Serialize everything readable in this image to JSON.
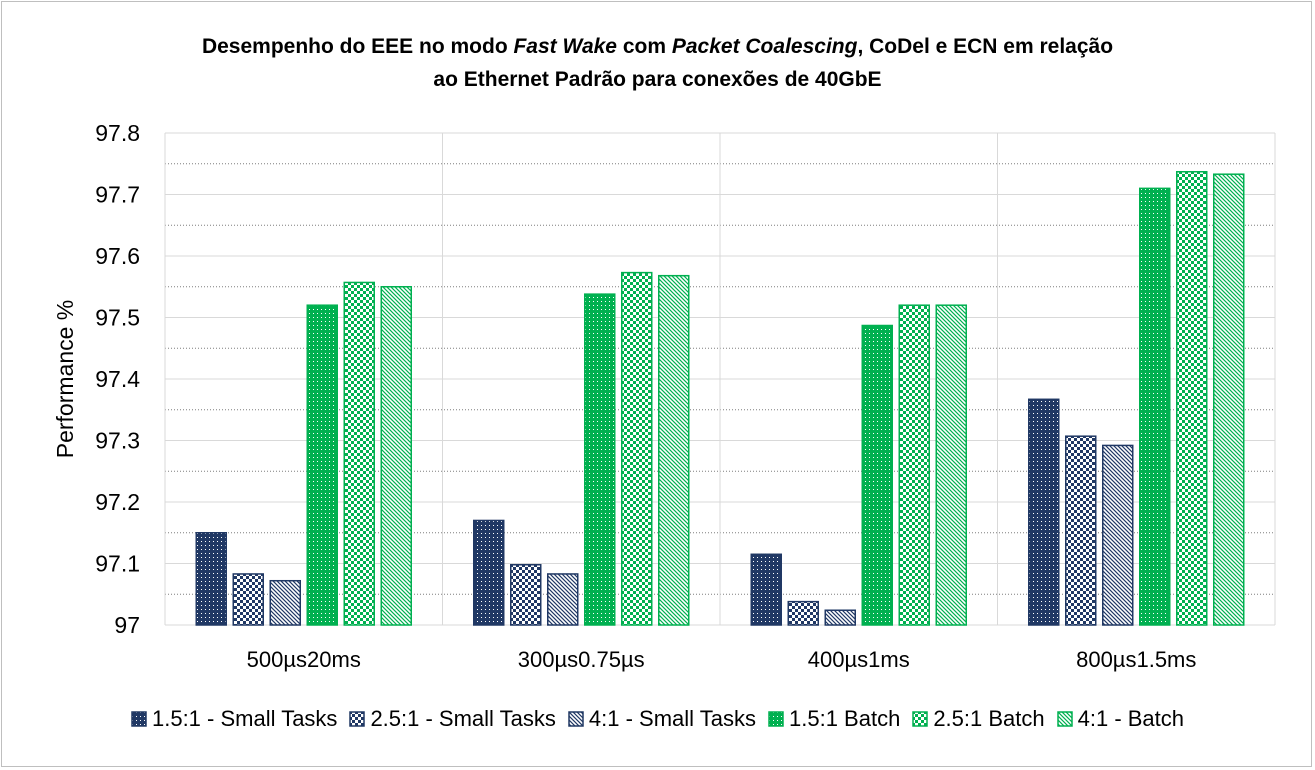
{
  "chart_data": {
    "type": "bar",
    "title_parts": [
      {
        "text": "Desempenho do EEE no modo ",
        "italic": false
      },
      {
        "text": "Fast Wake",
        "italic": true
      },
      {
        "text": " com ",
        "italic": false
      },
      {
        "text": "Packet Coalescing",
        "italic": true
      },
      {
        "text": ", CoDel e ECN em relação",
        "italic": false
      },
      {
        "text": "\n",
        "italic": false
      },
      {
        "text": "ao Ethernet Padrão para conexões de 40GbE",
        "italic": false
      }
    ],
    "ylabel": "Performance %",
    "xlabel": "",
    "ylim": [
      97,
      97.8
    ],
    "yticks": [
      "97",
      "97.1",
      "97.2",
      "97.3",
      "97.4",
      "97.5",
      "97.6",
      "97.7",
      "97.8"
    ],
    "grid": true,
    "legend_position": "bottom",
    "categories": [
      "500µs20ms",
      "300µs0.75µs",
      "400µs1ms",
      "800µs1.5ms"
    ],
    "series": [
      {
        "name": "1.5:1 - Small Tasks",
        "values": [
          97.15,
          97.17,
          97.115,
          97.367
        ],
        "color": "#203864",
        "pattern": "dots"
      },
      {
        "name": "2.5:1 - Small Tasks",
        "values": [
          97.083,
          97.098,
          97.038,
          97.307
        ],
        "color": "#203864",
        "pattern": "checker"
      },
      {
        "name": "4:1 - Small Tasks",
        "values": [
          97.072,
          97.083,
          97.024,
          97.292
        ],
        "color": "#203864",
        "pattern": "diagonal"
      },
      {
        "name": "1.5:1 Batch",
        "values": [
          97.52,
          97.538,
          97.487,
          97.71
        ],
        "color": "#00b050",
        "pattern": "dots"
      },
      {
        "name": "2.5:1 Batch",
        "values": [
          97.557,
          97.573,
          97.52,
          97.737
        ],
        "color": "#00b050",
        "pattern": "checker"
      },
      {
        "name": "4:1 - Batch",
        "values": [
          97.55,
          97.568,
          97.52,
          97.733
        ],
        "color": "#00b050",
        "pattern": "diagonal"
      }
    ]
  }
}
